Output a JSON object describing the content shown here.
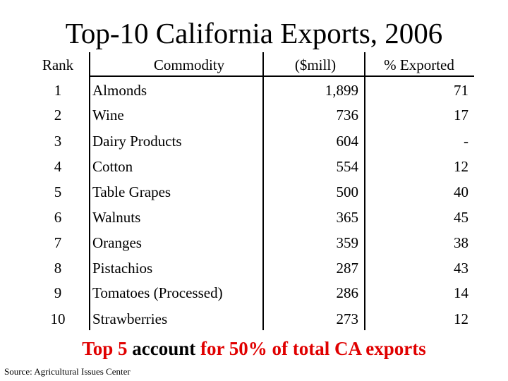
{
  "title": "Top-10 California Exports, 2006",
  "table": {
    "headers": {
      "rank": "Rank",
      "commodity": "Commodity",
      "value": "($mill)",
      "pct": "% Exported"
    },
    "rows": [
      {
        "rank": "1",
        "commodity": "Almonds",
        "value": "1,899",
        "pct": "71"
      },
      {
        "rank": "2",
        "commodity": "Wine",
        "value": "736",
        "pct": "17"
      },
      {
        "rank": "3",
        "commodity": "Dairy Products",
        "value": "604",
        "pct": "-"
      },
      {
        "rank": "4",
        "commodity": "Cotton",
        "value": "554",
        "pct": "12"
      },
      {
        "rank": "5",
        "commodity": "Table Grapes",
        "value": "500",
        "pct": "40"
      },
      {
        "rank": "6",
        "commodity": "Walnuts",
        "value": "365",
        "pct": "45"
      },
      {
        "rank": "7",
        "commodity": "Oranges",
        "value": "359",
        "pct": "38"
      },
      {
        "rank": "8",
        "commodity": "Pistachios",
        "value": "287",
        "pct": "43"
      },
      {
        "rank": "9",
        "commodity": "Tomatoes (Processed)",
        "value": "286",
        "pct": "14"
      },
      {
        "rank": "10",
        "commodity": "Strawberries",
        "value": "273",
        "pct": "12"
      }
    ]
  },
  "footnote": {
    "part1": "Top 5",
    "part2": " account ",
    "part3": "for 50% of total CA exports"
  },
  "source": "Source: Agricultural Issues Center",
  "colors": {
    "emphasis": "#e00000",
    "text": "#000000"
  }
}
